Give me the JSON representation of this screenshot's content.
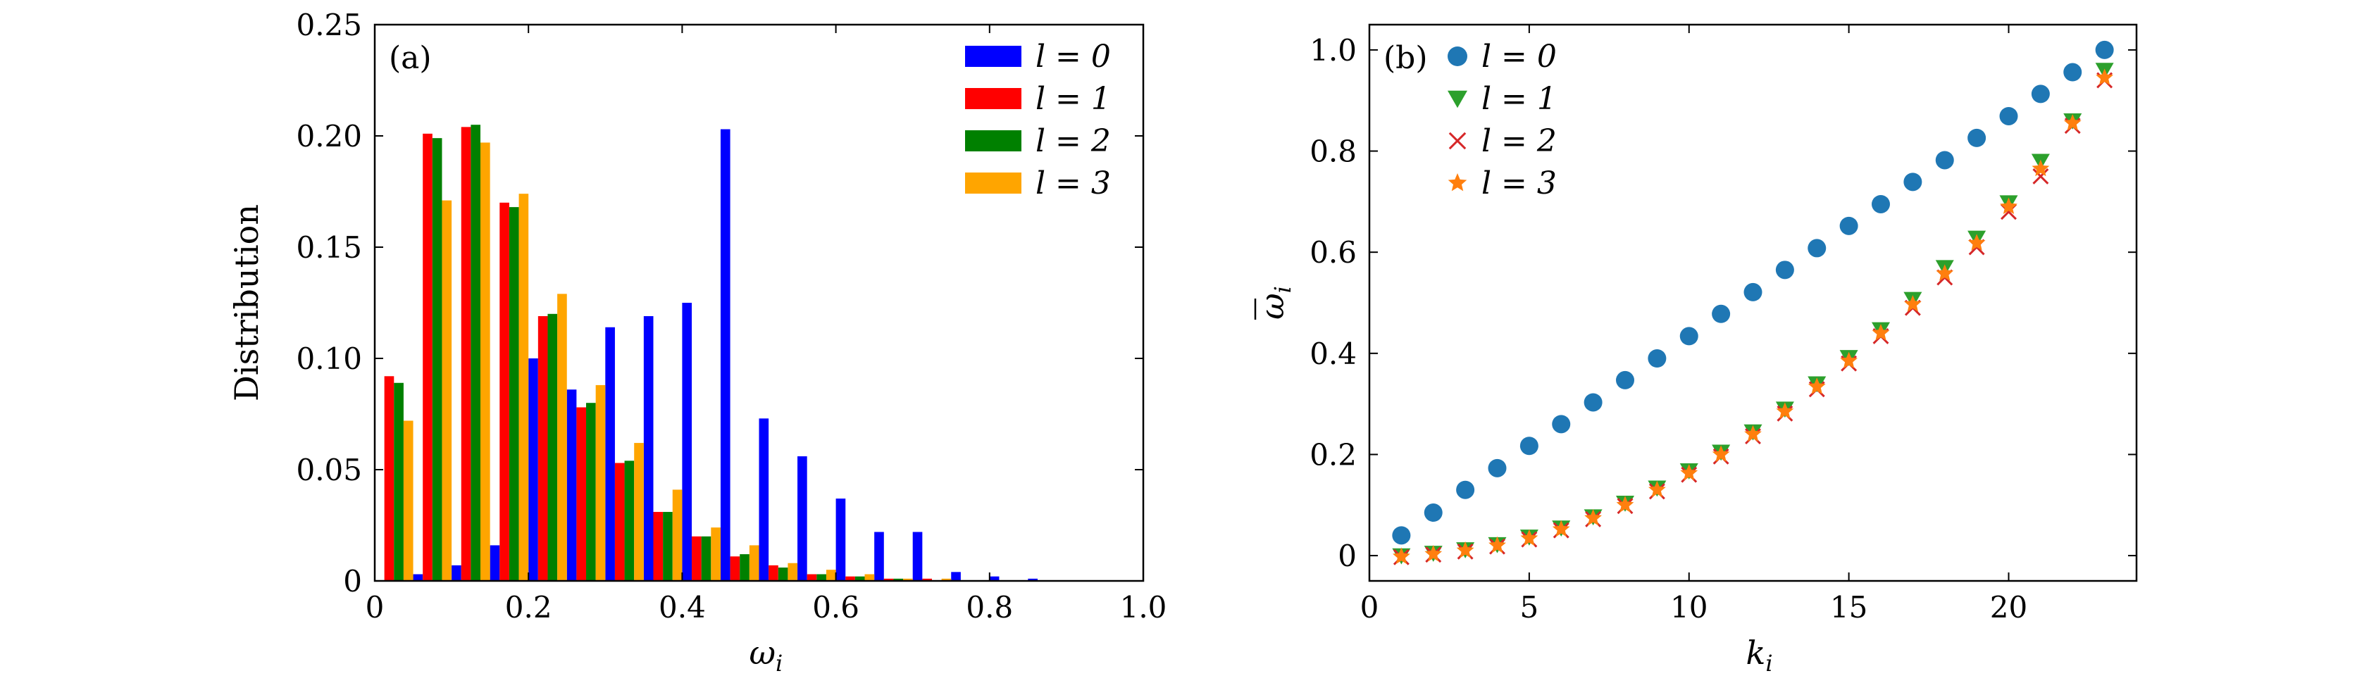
{
  "chart_data": [
    {
      "type": "bar",
      "panel_label": "(a)",
      "xlabel": "ω",
      "xlabel_sub": "i",
      "ylabel": "Distribution",
      "xlim": [
        0,
        1.0
      ],
      "ylim": [
        0,
        0.25
      ],
      "xticks": [
        "0",
        "0.2",
        "0.4",
        "0.6",
        "0.8",
        "1.0"
      ],
      "yticks": [
        "0",
        "0.05",
        "0.10",
        "0.15",
        "0.20",
        "0.25"
      ],
      "legend_position": "top-right",
      "bin_centers": [
        0.025,
        0.075,
        0.125,
        0.175,
        0.225,
        0.275,
        0.325,
        0.375,
        0.425,
        0.475,
        0.525,
        0.575,
        0.625,
        0.675,
        0.725,
        0.775,
        0.825,
        0.875,
        0.925,
        0.975
      ],
      "bin_width": 0.05,
      "series": [
        {
          "name": "l = 0",
          "color": "#0000ff",
          "values": [
            0.0,
            0.003,
            0.007,
            0.016,
            0.1,
            0.086,
            0.114,
            0.119,
            0.125,
            0.203,
            0.073,
            0.056,
            0.037,
            0.022,
            0.022,
            0.004,
            0.002,
            0.001,
            0.0,
            0.0
          ]
        },
        {
          "name": "l = 1",
          "color": "#ff0000",
          "values": [
            0.092,
            0.201,
            0.204,
            0.17,
            0.119,
            0.078,
            0.053,
            0.031,
            0.02,
            0.011,
            0.007,
            0.003,
            0.002,
            0.001,
            0.001,
            0.0,
            0.0,
            0.0,
            0.0,
            0.0
          ]
        },
        {
          "name": "l = 2",
          "color": "#008000",
          "values": [
            0.089,
            0.199,
            0.205,
            0.168,
            0.12,
            0.08,
            0.054,
            0.031,
            0.02,
            0.012,
            0.006,
            0.003,
            0.002,
            0.001,
            0.0,
            0.0,
            0.0,
            0.0,
            0.0,
            0.0
          ]
        },
        {
          "name": "l = 3",
          "color": "#ffa500",
          "values": [
            0.072,
            0.171,
            0.197,
            0.174,
            0.129,
            0.088,
            0.062,
            0.041,
            0.024,
            0.016,
            0.008,
            0.005,
            0.003,
            0.001,
            0.001,
            0.0,
            0.0,
            0.0,
            0.0,
            0.0
          ]
        }
      ]
    },
    {
      "type": "scatter",
      "panel_label": "(b)",
      "xlabel": "k",
      "xlabel_sub": "i",
      "ylabel": "ω",
      "ylabel_sub": "i",
      "xlim": [
        0,
        24
      ],
      "ylim": [
        -0.05,
        1.05
      ],
      "xticks": [
        "0",
        "5",
        "10",
        "15",
        "20"
      ],
      "yticks": [
        "0",
        "0.2",
        "0.4",
        "0.6",
        "0.8",
        "1.0"
      ],
      "legend_position": "top-left",
      "x": [
        1,
        2,
        3,
        4,
        5,
        6,
        7,
        8,
        9,
        10,
        11,
        12,
        13,
        14,
        15,
        16,
        17,
        18,
        19,
        20,
        21,
        22,
        23
      ],
      "series": [
        {
          "name": "l = 0",
          "marker": "circle",
          "color": "#1f77b4",
          "values": [
            0.04,
            0.085,
            0.13,
            0.173,
            0.217,
            0.26,
            0.303,
            0.347,
            0.39,
            0.434,
            0.478,
            0.521,
            0.565,
            0.608,
            0.652,
            0.695,
            0.739,
            0.782,
            0.826,
            0.869,
            0.913,
            0.956,
            1.0
          ]
        },
        {
          "name": "l = 1",
          "marker": "triangle-down",
          "color": "#2ca02c",
          "values": [
            0.0,
            0.005,
            0.012,
            0.022,
            0.037,
            0.055,
            0.077,
            0.104,
            0.134,
            0.168,
            0.205,
            0.245,
            0.29,
            0.34,
            0.392,
            0.447,
            0.507,
            0.57,
            0.628,
            0.698,
            0.78,
            0.86,
            0.96
          ]
        },
        {
          "name": "l = 2",
          "marker": "x",
          "color": "#d62728",
          "values": [
            -0.003,
            0.002,
            0.008,
            0.018,
            0.032,
            0.05,
            0.072,
            0.098,
            0.127,
            0.16,
            0.196,
            0.236,
            0.281,
            0.329,
            0.38,
            0.434,
            0.49,
            0.55,
            0.61,
            0.68,
            0.75,
            0.85,
            0.94
          ]
        },
        {
          "name": "l = 3",
          "marker": "star",
          "color": "#ff7f0e",
          "values": [
            -0.002,
            0.003,
            0.01,
            0.02,
            0.034,
            0.052,
            0.074,
            0.1,
            0.13,
            0.163,
            0.2,
            0.24,
            0.285,
            0.334,
            0.385,
            0.44,
            0.497,
            0.558,
            0.618,
            0.69,
            0.765,
            0.855,
            0.945
          ]
        }
      ]
    }
  ]
}
